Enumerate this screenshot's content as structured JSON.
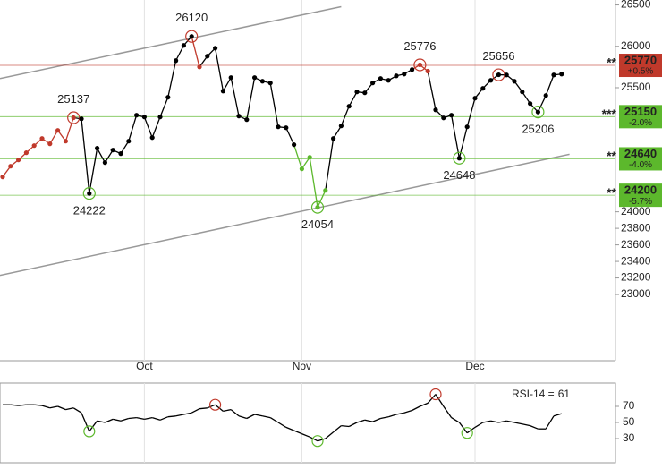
{
  "chart_data": [
    {
      "type": "line",
      "categories": [
        null,
        null,
        null,
        null,
        null,
        null,
        null,
        null,
        null,
        null,
        null,
        null,
        null,
        null,
        null,
        null,
        null,
        null,
        "Oct",
        null,
        null,
        null,
        null,
        null,
        null,
        null,
        null,
        null,
        null,
        null,
        null,
        null,
        null,
        null,
        null,
        null,
        null,
        null,
        "Nov",
        null,
        null,
        null,
        null,
        null,
        null,
        null,
        null,
        null,
        null,
        null,
        null,
        null,
        null,
        null,
        null,
        null,
        null,
        null,
        null,
        null,
        "Dec",
        null,
        null,
        null,
        null,
        null,
        null,
        null,
        null,
        null,
        null,
        null
      ],
      "values": [
        24422,
        24551,
        24627,
        24714,
        24800,
        24886,
        24822,
        24984,
        24854,
        25137,
        25124,
        24222,
        24768,
        24595,
        24746,
        24703,
        24854,
        25168,
        25146,
        24897,
        25146,
        25384,
        25827,
        26011,
        26120,
        25751,
        25881,
        25978,
        25459,
        25622,
        25157,
        25114,
        25622,
        25578,
        25557,
        25027,
        25016,
        24811,
        24519,
        24659,
        24054,
        24259,
        24886,
        25038,
        25276,
        25449,
        25438,
        25557,
        25611,
        25589,
        25643,
        25665,
        25719,
        25776,
        25700,
        25232,
        25135,
        25168,
        24648,
        25027,
        25373,
        25492,
        25589,
        25656,
        25654,
        25578,
        25449,
        25308,
        25206,
        25405,
        25654,
        25665
      ],
      "value_labels": [
        null,
        null,
        null,
        null,
        null,
        null,
        null,
        null,
        null,
        "25137",
        null,
        "24222",
        null,
        null,
        null,
        null,
        null,
        null,
        null,
        null,
        null,
        null,
        null,
        null,
        "26120",
        null,
        null,
        null,
        null,
        null,
        null,
        null,
        null,
        null,
        null,
        null,
        null,
        null,
        null,
        null,
        "24054",
        null,
        null,
        null,
        null,
        null,
        null,
        null,
        null,
        null,
        null,
        null,
        null,
        "25776",
        null,
        null,
        null,
        null,
        "24648",
        null,
        null,
        null,
        null,
        "25656",
        null,
        null,
        null,
        null,
        "25206",
        null,
        null,
        null
      ],
      "colors": [
        "#c0392b",
        "#c0392b",
        "#c0392b",
        "#c0392b",
        "#c0392b",
        "#c0392b",
        "#c0392b",
        "#c0392b",
        "#c0392b",
        "#c0392b",
        null,
        null,
        null,
        null,
        null,
        null,
        null,
        null,
        null,
        null,
        null,
        null,
        null,
        null,
        null,
        "#c0392b",
        null,
        null,
        null,
        null,
        null,
        null,
        null,
        null,
        null,
        null,
        null,
        null,
        "#5cb82c",
        "#5cb82c",
        "#5cb82c",
        "#5cb82c",
        null,
        null,
        null,
        null,
        null,
        null,
        null,
        null,
        null,
        null,
        null,
        "#c0392b",
        "#c0392b",
        null,
        null,
        null,
        null,
        null,
        null,
        null,
        null,
        null,
        null,
        null,
        null,
        null,
        null,
        null,
        null,
        null
      ],
      "color": "#000000",
      "high_color": "#c0392b",
      "low_color": "#5cb82c",
      "ylim": [
        22200,
        26560
      ],
      "yticks": [
        26500,
        26000,
        25500,
        24000,
        23800,
        23600,
        23400,
        23200,
        23000
      ],
      "trendlines": [
        {
          "x": [
            0,
            43
          ],
          "values": [
            25617,
            26479
          ]
        },
        {
          "x": [
            0,
            72
          ],
          "values": [
            23239,
            24695
          ]
        }
      ],
      "trend_color": "#999999",
      "levels": [
        {
          "value": 25770,
          "change": "+0.5%",
          "marker": "**",
          "color": "#c0392b"
        },
        {
          "value": 25150,
          "change": "-2.0%",
          "marker": "***",
          "color": "#5cb82c"
        },
        {
          "value": 24640,
          "change": "-4.0%",
          "marker": "**",
          "color": "#5cb82c"
        },
        {
          "value": 24200,
          "change": "-5.7%",
          "marker": "**",
          "color": "#5cb82c"
        }
      ]
    },
    {
      "type": "line",
      "label": "RSI-14 =",
      "values": [
        72,
        72,
        71,
        72,
        72,
        71,
        68,
        70,
        66,
        68,
        62,
        39,
        52,
        50,
        54,
        52,
        55,
        56,
        54,
        56,
        53,
        57,
        58,
        60,
        62,
        67,
        68,
        72,
        64,
        66,
        58,
        55,
        60,
        58,
        56,
        50,
        44,
        40,
        36,
        32,
        27,
        30,
        38,
        46,
        45,
        50,
        53,
        51,
        55,
        57,
        60,
        62,
        65,
        70,
        74,
        85,
        70,
        56,
        50,
        37,
        44,
        50,
        52,
        50,
        52,
        50,
        48,
        46,
        42,
        42,
        58,
        61
      ],
      "marker_colors": [
        null,
        null,
        null,
        null,
        null,
        null,
        null,
        null,
        null,
        null,
        null,
        "#5cb82c",
        null,
        null,
        null,
        null,
        null,
        null,
        null,
        null,
        null,
        null,
        null,
        null,
        null,
        null,
        null,
        "#c0392b",
        null,
        null,
        null,
        null,
        null,
        null,
        null,
        null,
        null,
        null,
        null,
        null,
        "#5cb82c",
        null,
        null,
        null,
        null,
        null,
        null,
        null,
        null,
        null,
        null,
        null,
        null,
        null,
        null,
        "#c0392b",
        null,
        null,
        null,
        "#5cb82c",
        null,
        null,
        null,
        null,
        null,
        null,
        null,
        null,
        null,
        null,
        null,
        null
      ],
      "color": "#000000",
      "ylim": [
        0,
        100
      ],
      "yticks": [
        70,
        50,
        30
      ]
    }
  ]
}
